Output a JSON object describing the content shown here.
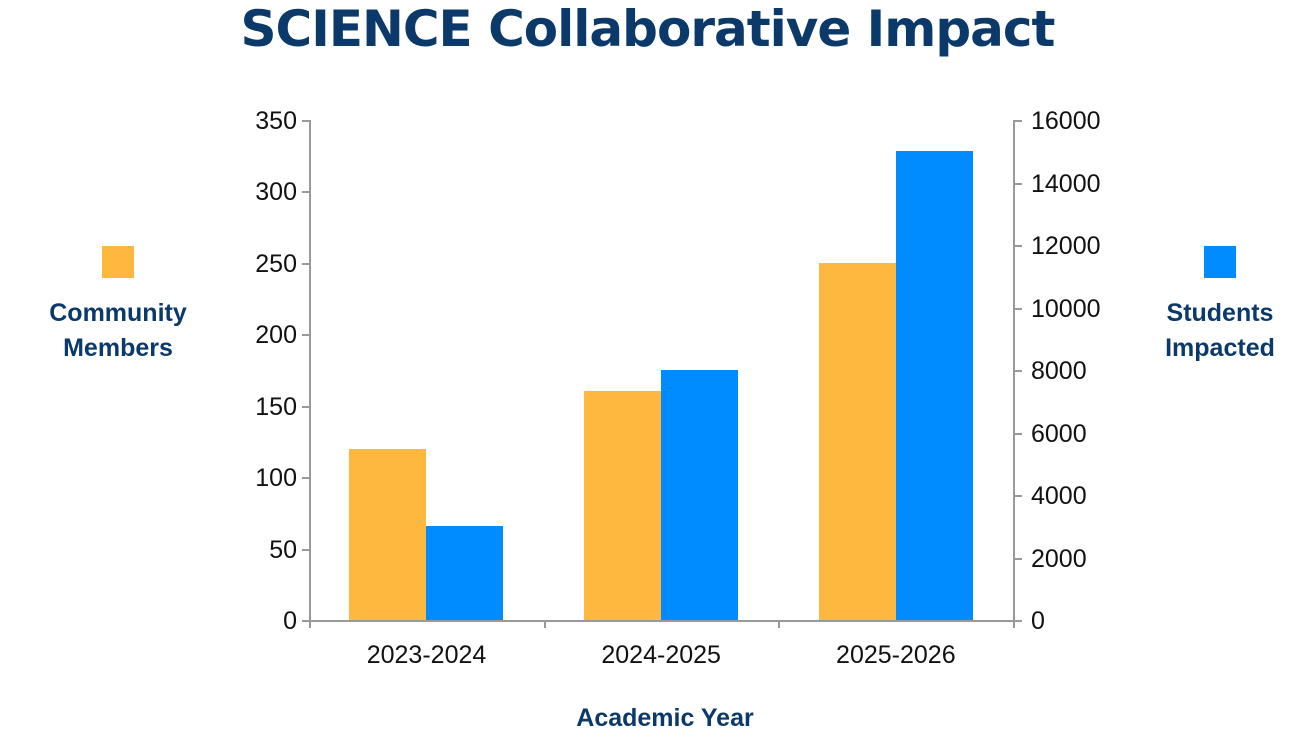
{
  "title": "SCIENCE Collaborative Impact",
  "colors": {
    "community": "#ffb83f",
    "students": "#008cff",
    "title": "#0b3a6a",
    "axis": "#999999"
  },
  "legend": {
    "left": {
      "line1": "Community",
      "line2": "Members"
    },
    "right": {
      "line1": "Students",
      "line2": "Impacted"
    }
  },
  "axes": {
    "x_title": "Academic Year",
    "left_ticks": [
      "0",
      "50",
      "100",
      "150",
      "200",
      "250",
      "300",
      "350"
    ],
    "right_ticks": [
      "0",
      "2000",
      "4000",
      "6000",
      "8000",
      "10000",
      "12000",
      "14000",
      "16000"
    ],
    "categories": [
      "2023-2024",
      "2024-2025",
      "2025-2026"
    ]
  },
  "chart_data": {
    "type": "bar",
    "title": "SCIENCE Collaborative Impact",
    "xlabel": "Academic Year",
    "ylabel": "Community Members",
    "y2label": "Students Impacted",
    "categories": [
      "2023-2024",
      "2024-2025",
      "2025-2026"
    ],
    "series": [
      {
        "name": "Community Members",
        "axis": "left",
        "color": "#ffb83f",
        "values": [
          120,
          160,
          250
        ]
      },
      {
        "name": "Students Impacted",
        "axis": "right",
        "color": "#008cff",
        "values": [
          3000,
          8000,
          15000
        ]
      }
    ],
    "ylim": [
      0,
      350
    ],
    "y2lim": [
      0,
      16000
    ],
    "yticks": [
      0,
      50,
      100,
      150,
      200,
      250,
      300,
      350
    ],
    "y2ticks": [
      0,
      2000,
      4000,
      6000,
      8000,
      10000,
      12000,
      14000,
      16000
    ],
    "grid": false,
    "legend_position": "sides (left: Community Members, right: Students Impacted)"
  }
}
